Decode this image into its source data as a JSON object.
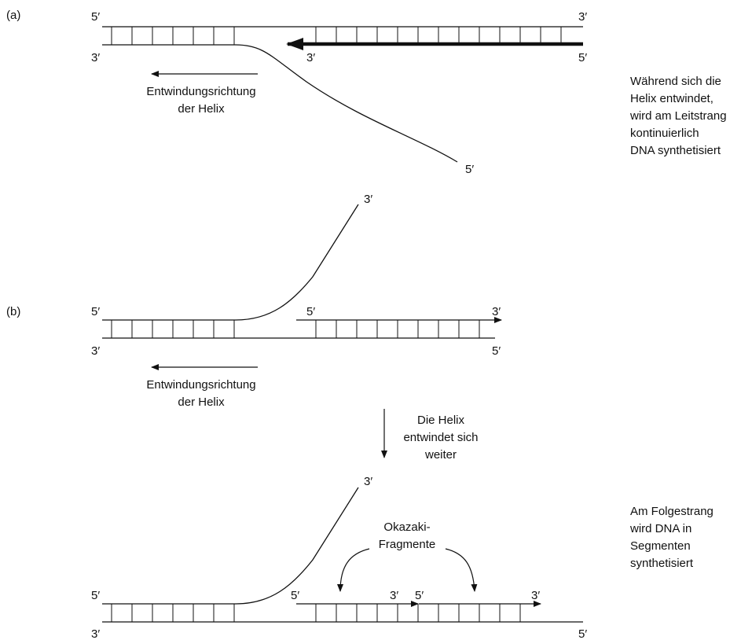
{
  "panels": {
    "a": {
      "label": "(a)",
      "top_strand": {
        "left_end": "5′",
        "right_end": "3′"
      },
      "bottom_strand": {
        "left_end": "3′",
        "right_end": "5′"
      },
      "new_strand": {
        "right_end": "5′",
        "left_end": "3′"
      },
      "unwound_strand_end": "5′",
      "unwinding_label": [
        "Entwindungsrichtung",
        "der Helix"
      ],
      "side_note": [
        "Während sich die",
        "Helix entwindet,",
        "wird am Leitstrang",
        "kontinuierlich",
        "DNA synthetisiert"
      ]
    },
    "b": {
      "label": "(b)",
      "top_strand": {
        "left_end": "5′"
      },
      "bottom_strand": {
        "left_end": "3′",
        "right_end": "5′"
      },
      "unwound_strand_end": "3′",
      "new_strand": {
        "left_end": "5′",
        "right_end": "3′"
      },
      "unwinding_label": [
        "Entwindungsrichtung",
        "der Helix"
      ]
    },
    "transition": {
      "label": [
        "Die Helix",
        "entwindet sich",
        "weiter"
      ]
    },
    "c": {
      "top_strand": {
        "left_end": "5′"
      },
      "bottom_strand": {
        "left_end": "3′",
        "right_end": "5′"
      },
      "unwound_strand_end": "3′",
      "fragment_1": {
        "left_end": "5′",
        "right_end": "3′"
      },
      "fragment_2": {
        "left_end": "5′",
        "right_end": "3′"
      },
      "okazaki_label": [
        "Okazaki-",
        "Fragmente"
      ],
      "side_note": [
        "Am Folgestrang",
        "wird DNA in",
        "Segmenten",
        "synthetisiert"
      ]
    }
  },
  "colors": {
    "ink": "#111111",
    "background": "#ffffff"
  }
}
